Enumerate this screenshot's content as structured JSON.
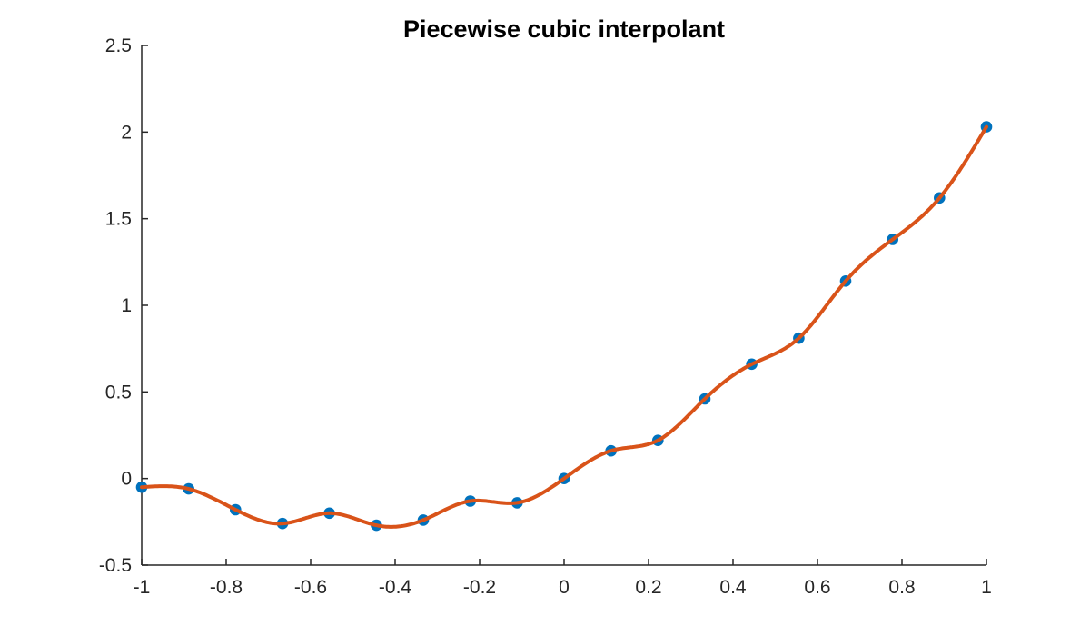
{
  "chart_data": {
    "type": "line",
    "title": "Piecewise cubic interpolant",
    "interpolation": "piecewise-cubic-spline",
    "grid": false,
    "legend": "none",
    "xlim": [
      -1,
      1
    ],
    "ylim": [
      -0.5,
      2.5
    ],
    "xticks": [
      -1,
      -0.8,
      -0.6,
      -0.4,
      -0.2,
      0,
      0.2,
      0.4,
      0.6,
      0.8,
      1
    ],
    "xtick_labels": [
      "-1",
      "-0.8",
      "-0.6",
      "-0.4",
      "-0.2",
      "0",
      "0.2",
      "0.4",
      "0.6",
      "0.8",
      "1"
    ],
    "yticks": [
      -0.5,
      0,
      0.5,
      1,
      1.5,
      2,
      2.5
    ],
    "ytick_labels": [
      "-0.5",
      "0",
      "0.5",
      "1",
      "1.5",
      "2",
      "2.5"
    ],
    "x": [
      -1,
      -0.8889,
      -0.7778,
      -0.6667,
      -0.5556,
      -0.4444,
      -0.3333,
      -0.2222,
      -0.1111,
      0,
      0.1111,
      0.2222,
      0.3333,
      0.4444,
      0.5556,
      0.6667,
      0.7778,
      0.8889,
      1
    ],
    "y": [
      -0.05,
      -0.06,
      -0.18,
      -0.26,
      -0.2,
      -0.27,
      -0.24,
      -0.13,
      -0.14,
      0.0,
      0.16,
      0.22,
      0.46,
      0.66,
      0.81,
      1.14,
      1.38,
      1.62,
      2.03
    ],
    "marker_color": "#0072BD",
    "line_color": "#D95319",
    "axis_color": "#262626",
    "title_color": "#000000",
    "background_color": "#FFFFFF"
  }
}
